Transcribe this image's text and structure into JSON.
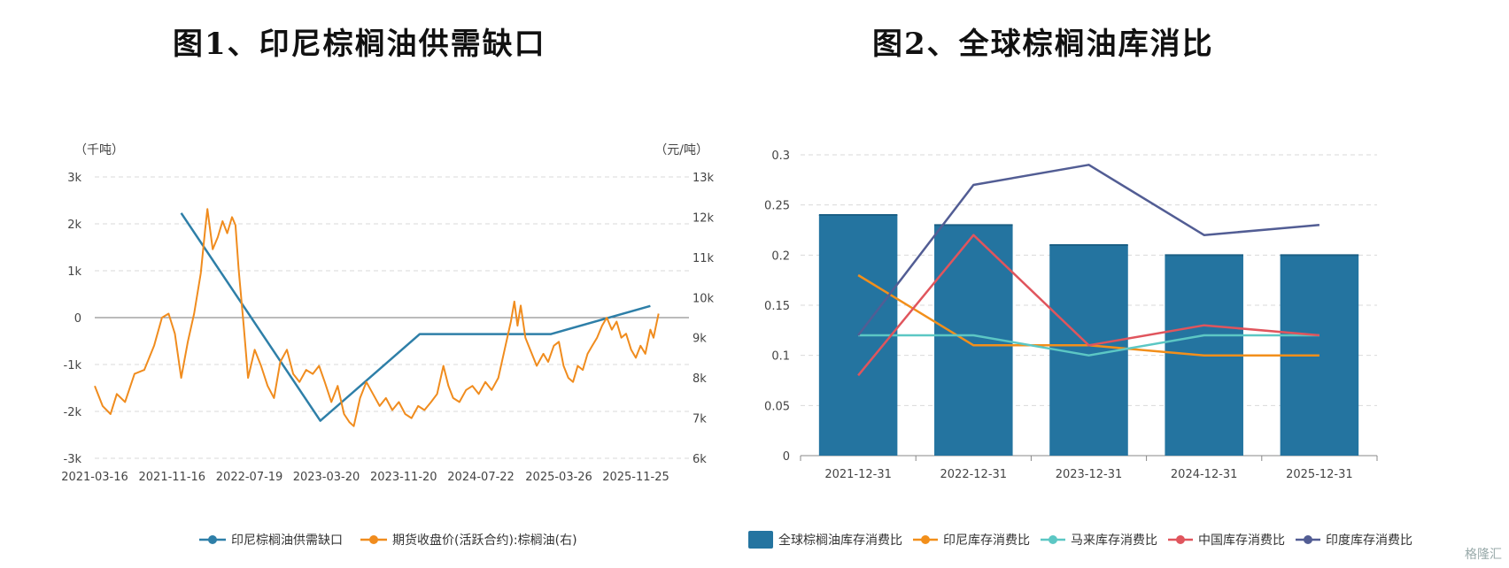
{
  "titles": {
    "left": "图1、印尼棕榈油供需缺口",
    "right": "图2、全球棕榈油库消比"
  },
  "watermark": "格隆汇",
  "chart_data": [
    {
      "type": "line",
      "title": "图1、印尼棕榈油供需缺口",
      "y_left_unit": "（千吨）",
      "y_right_unit": "（元/吨）",
      "y_left_ticks": [
        "3k",
        "2k",
        "1k",
        "0",
        "-1k",
        "-2k",
        "-3k"
      ],
      "y_right_ticks": [
        "13k",
        "12k",
        "11k",
        "10k",
        "9k",
        "8k",
        "7k",
        "6k"
      ],
      "x_ticks": [
        "2021-03-16",
        "2021-11-16",
        "2022-07-19",
        "2023-03-20",
        "2023-11-20",
        "2024-07-22",
        "2025-03-26",
        "2025-11-25"
      ],
      "ylim_left": [
        -3000,
        3000
      ],
      "ylim_right": [
        6000,
        13000
      ],
      "grid": true,
      "legend_position": "bottom",
      "series": [
        {
          "name": "印尼棕榈油供需缺口",
          "axis": "left",
          "color": "#2e7fa8",
          "points": [
            [
              "2021-12-15",
              2230
            ],
            [
              "2023-03-01",
              -2200
            ],
            [
              "2024-01-10",
              -350
            ],
            [
              "2025-03-01",
              -350
            ],
            [
              "2026-01-10",
              250
            ]
          ]
        },
        {
          "name": "期货收盘价(活跃合约):棕榈油(右)",
          "axis": "right",
          "color": "#f08c1e",
          "points": [
            [
              "2021-03-16",
              7800
            ],
            [
              "2021-04-10",
              7300
            ],
            [
              "2021-05-05",
              7100
            ],
            [
              "2021-05-25",
              7600
            ],
            [
              "2021-06-20",
              7400
            ],
            [
              "2021-07-20",
              8100
            ],
            [
              "2021-08-20",
              8200
            ],
            [
              "2021-09-20",
              8800
            ],
            [
              "2021-10-15",
              9500
            ],
            [
              "2021-11-05",
              9600
            ],
            [
              "2021-11-25",
              9100
            ],
            [
              "2021-12-15",
              8000
            ],
            [
              "2022-01-05",
              8900
            ],
            [
              "2022-01-25",
              9600
            ],
            [
              "2022-02-15",
              10600
            ],
            [
              "2022-03-01",
              11700
            ],
            [
              "2022-03-08",
              12200
            ],
            [
              "2022-03-25",
              11200
            ],
            [
              "2022-04-10",
              11500
            ],
            [
              "2022-04-25",
              11900
            ],
            [
              "2022-05-10",
              11600
            ],
            [
              "2022-05-25",
              12000
            ],
            [
              "2022-06-05",
              11800
            ],
            [
              "2022-06-15",
              10700
            ],
            [
              "2022-07-01",
              9300
            ],
            [
              "2022-07-15",
              8000
            ],
            [
              "2022-08-05",
              8700
            ],
            [
              "2022-08-25",
              8300
            ],
            [
              "2022-09-15",
              7800
            ],
            [
              "2022-10-05",
              7500
            ],
            [
              "2022-10-25",
              8400
            ],
            [
              "2022-11-15",
              8700
            ],
            [
              "2022-12-05",
              8100
            ],
            [
              "2022-12-25",
              7900
            ],
            [
              "2023-01-15",
              8200
            ],
            [
              "2023-02-05",
              8100
            ],
            [
              "2023-02-25",
              8300
            ],
            [
              "2023-03-15",
              7900
            ],
            [
              "2023-04-05",
              7400
            ],
            [
              "2023-04-25",
              7800
            ],
            [
              "2023-05-15",
              7100
            ],
            [
              "2023-06-01",
              6900
            ],
            [
              "2023-06-15",
              6800
            ],
            [
              "2023-07-05",
              7500
            ],
            [
              "2023-07-25",
              7900
            ],
            [
              "2023-08-15",
              7600
            ],
            [
              "2023-09-05",
              7300
            ],
            [
              "2023-09-25",
              7500
            ],
            [
              "2023-10-15",
              7200
            ],
            [
              "2023-11-05",
              7400
            ],
            [
              "2023-11-25",
              7100
            ],
            [
              "2023-12-15",
              7000
            ],
            [
              "2024-01-05",
              7300
            ],
            [
              "2024-01-25",
              7200
            ],
            [
              "2024-02-15",
              7400
            ],
            [
              "2024-03-05",
              7600
            ],
            [
              "2024-03-25",
              8300
            ],
            [
              "2024-04-10",
              7800
            ],
            [
              "2024-04-25",
              7500
            ],
            [
              "2024-05-15",
              7400
            ],
            [
              "2024-06-05",
              7700
            ],
            [
              "2024-06-25",
              7800
            ],
            [
              "2024-07-15",
              7600
            ],
            [
              "2024-08-05",
              7900
            ],
            [
              "2024-08-25",
              7700
            ],
            [
              "2024-09-15",
              8000
            ],
            [
              "2024-10-05",
              8700
            ],
            [
              "2024-10-25",
              9400
            ],
            [
              "2024-11-05",
              9900
            ],
            [
              "2024-11-15",
              9300
            ],
            [
              "2024-11-25",
              9800
            ],
            [
              "2024-12-10",
              9000
            ],
            [
              "2024-12-25",
              8700
            ],
            [
              "2025-01-15",
              8300
            ],
            [
              "2025-02-05",
              8600
            ],
            [
              "2025-02-20",
              8400
            ],
            [
              "2025-03-10",
              8800
            ],
            [
              "2025-03-26",
              8900
            ],
            [
              "2025-04-10",
              8300
            ],
            [
              "2025-04-25",
              8000
            ],
            [
              "2025-05-10",
              7900
            ],
            [
              "2025-05-25",
              8300
            ],
            [
              "2025-06-10",
              8200
            ],
            [
              "2025-06-25",
              8600
            ],
            [
              "2025-07-10",
              8800
            ],
            [
              "2025-07-25",
              9000
            ],
            [
              "2025-08-10",
              9300
            ],
            [
              "2025-08-25",
              9500
            ],
            [
              "2025-09-10",
              9200
            ],
            [
              "2025-09-25",
              9400
            ],
            [
              "2025-10-10",
              9000
            ],
            [
              "2025-10-25",
              9100
            ],
            [
              "2025-11-10",
              8700
            ],
            [
              "2025-11-25",
              8500
            ],
            [
              "2025-12-10",
              8800
            ],
            [
              "2025-12-25",
              8600
            ],
            [
              "2026-01-10",
              9200
            ],
            [
              "2026-01-20",
              9000
            ],
            [
              "2026-01-28",
              9300
            ],
            [
              "2026-02-05",
              9600
            ]
          ]
        }
      ]
    },
    {
      "type": "bar",
      "title": "图2、全球棕榈油库消比",
      "categories": [
        "2021-12-31",
        "2022-12-31",
        "2023-12-31",
        "2024-12-31",
        "2025-12-31"
      ],
      "y_ticks": [
        "0.3",
        "0.25",
        "0.2",
        "0.15",
        "0.1",
        "0.05",
        "0"
      ],
      "ylim": [
        0,
        0.3
      ],
      "grid": true,
      "legend_position": "bottom",
      "series": [
        {
          "name": "全球棕榈油库存消费比",
          "kind": "bar",
          "color": "#2474a0",
          "values": [
            0.24,
            0.23,
            0.21,
            0.2,
            0.2
          ]
        },
        {
          "name": "印尼库存消费比",
          "kind": "line",
          "color": "#f28f1b",
          "values": [
            0.18,
            0.11,
            0.11,
            0.1,
            0.1
          ]
        },
        {
          "name": "马来库存消费比",
          "kind": "line",
          "color": "#5cc7c4",
          "values": [
            0.12,
            0.12,
            0.1,
            0.12,
            0.12
          ]
        },
        {
          "name": "中国库存消费比",
          "kind": "line",
          "color": "#e0555d",
          "values": [
            0.08,
            0.22,
            0.11,
            0.13,
            0.12
          ]
        },
        {
          "name": "印度库存消费比",
          "kind": "line",
          "color": "#525d94",
          "values": [
            0.12,
            0.27,
            0.29,
            0.22,
            0.23
          ]
        }
      ]
    }
  ]
}
